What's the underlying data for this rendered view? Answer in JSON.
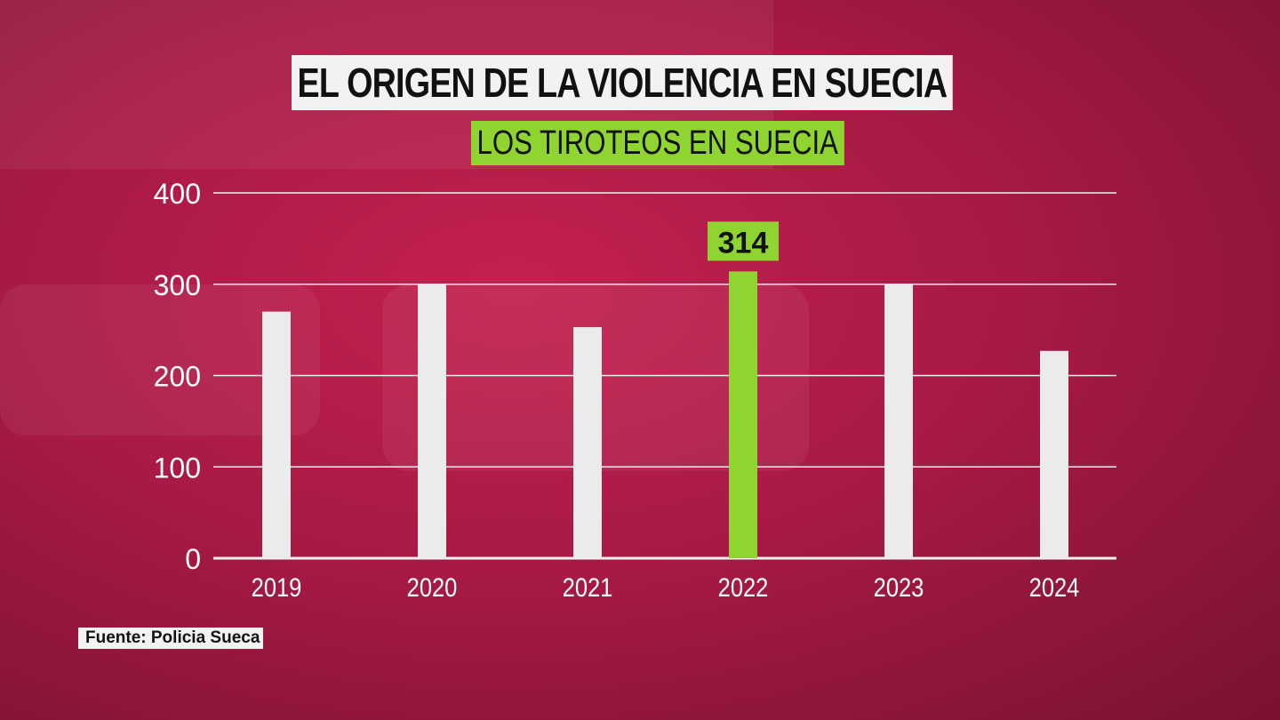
{
  "chart_data": {
    "type": "bar",
    "title": "EL ORIGEN DE LA VIOLENCIA EN SUECIA",
    "subtitle": "LOS TIROTEOS EN SUECIA",
    "categories": [
      "2019",
      "2020",
      "2021",
      "2022",
      "2023",
      "2024"
    ],
    "values": [
      270,
      300,
      253,
      314,
      300,
      227
    ],
    "highlight": {
      "category": "2022",
      "label": "314",
      "color": "#8fd430"
    },
    "bar_color": "#ebebeb",
    "yticks": [
      "0",
      "100",
      "200",
      "300",
      "400"
    ],
    "ylim": [
      0,
      400
    ],
    "grid": true,
    "xlabel": "",
    "ylabel": ""
  },
  "source": "Fuente: Policia Sueca"
}
